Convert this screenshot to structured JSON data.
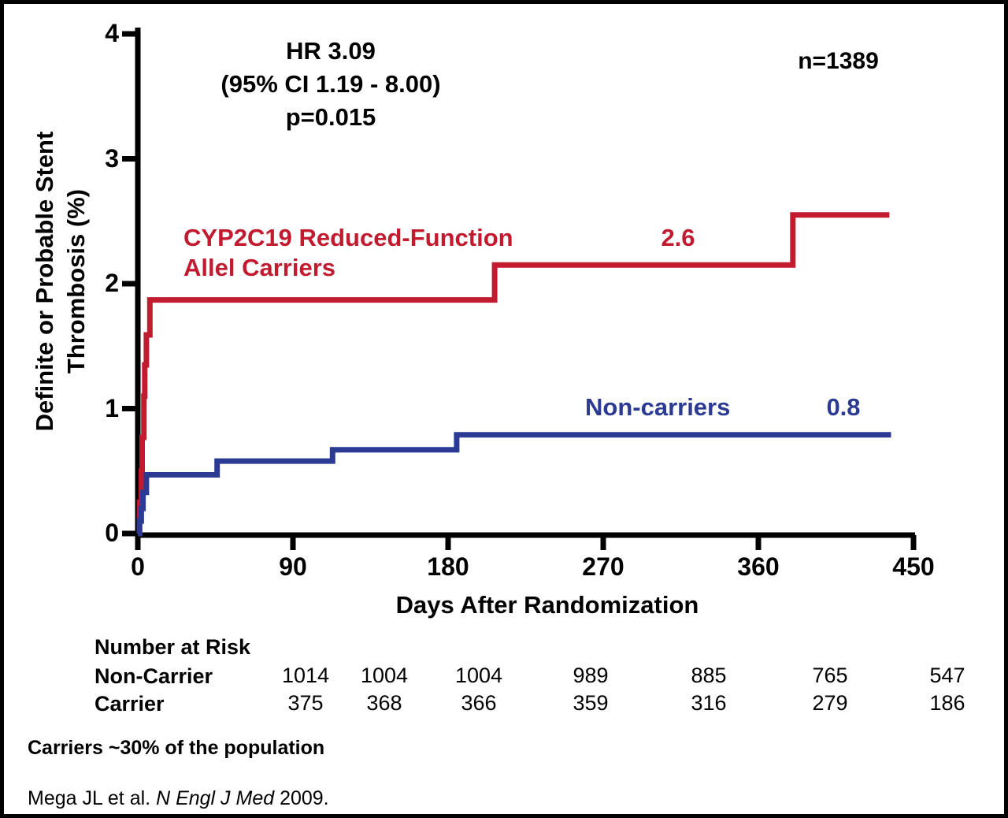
{
  "figure": {
    "sample_size": "n=1389",
    "colors": {
      "carrier_red": "#C21B30",
      "non_carrier_blue": "#2B3A92",
      "axis_black": "#000000"
    }
  },
  "chart_data": {
    "type": "line",
    "subtype": "kaplan-meier-step",
    "title": "",
    "xlabel": "Days After Randomization",
    "ylabel": "Definite or Probable Stent Thrombosis (%)",
    "ylabel_lines": [
      "Definite or Probable Stent",
      "Thrombosis (%)"
    ],
    "xlim": [
      0,
      450
    ],
    "ylim": [
      0,
      4
    ],
    "xticks": [
      0,
      90,
      180,
      270,
      360,
      450
    ],
    "yticks": [
      0,
      1,
      2,
      3,
      4
    ],
    "grid": false,
    "legend_position": "inline-labels",
    "step": "after",
    "annotations": [
      "HR 3.09",
      "(95% CI 1.19 - 8.00)",
      "p=0.015",
      "n=1389"
    ],
    "series": [
      {
        "name": "CYP2C19 Reduced-Function Allel Carriers",
        "label_lines": [
          "CYP2C19 Reduced-Function",
          "Allel Carriers"
        ],
        "end_label": "2.6",
        "color": "#C21B30",
        "points": [
          [
            0,
            0
          ],
          [
            1,
            0.25
          ],
          [
            2,
            0.5
          ],
          [
            2.5,
            0.77
          ],
          [
            3.5,
            1.1
          ],
          [
            4,
            1.35
          ],
          [
            5,
            1.59
          ],
          [
            7,
            1.87
          ],
          [
            207,
            2.15
          ],
          [
            380,
            2.55
          ],
          [
            436,
            2.55
          ]
        ]
      },
      {
        "name": "Non-carriers",
        "label_lines": [
          "Non-carriers"
        ],
        "end_label": "0.8",
        "color": "#2B3A92",
        "points": [
          [
            0,
            0
          ],
          [
            1,
            0.1
          ],
          [
            2,
            0.2
          ],
          [
            3,
            0.33
          ],
          [
            5,
            0.47
          ],
          [
            46,
            0.58
          ],
          [
            113,
            0.67
          ],
          [
            185,
            0.79
          ],
          [
            437,
            0.79
          ]
        ]
      }
    ]
  },
  "risk_table": {
    "title": "Number at Risk",
    "rows": [
      {
        "label": "Non-Carrier",
        "values": [
          "1014",
          "1004",
          "1004",
          "989",
          "885",
          "765",
          "547"
        ]
      },
      {
        "label": "Carrier",
        "values": [
          "375",
          "368",
          "366",
          "359",
          "316",
          "279",
          "186"
        ]
      }
    ]
  },
  "footnotes": {
    "carriers_note": "Carriers ~30% of the population",
    "citation_prefix": "Mega JL et al. ",
    "citation_journal": "N Engl J Med",
    "citation_suffix": " 2009."
  }
}
